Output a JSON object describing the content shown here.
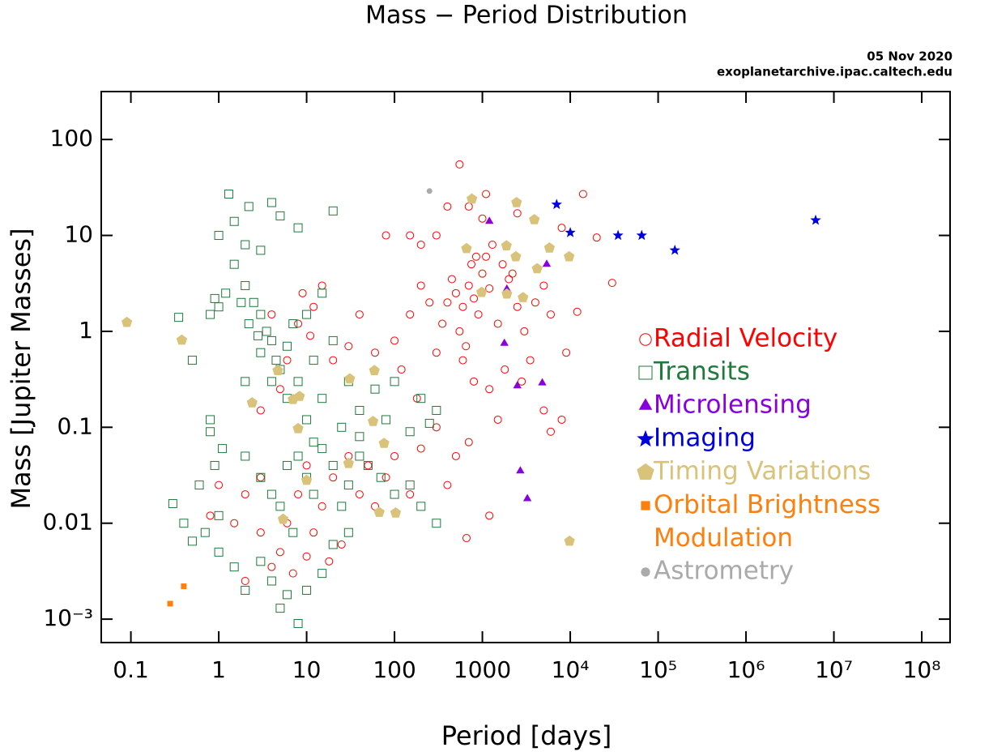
{
  "chart_data": {
    "type": "scatter",
    "title": "Mass − Period Distribution",
    "subtitle": "05 Nov 2020",
    "source": "exoplanetarchive.ipac.caltech.edu",
    "x_label": "Period [days]",
    "y_label": "Mass [Jupiter Masses]",
    "xscale": "log",
    "yscale": "log",
    "xlim": [
      0.046,
      210000000
    ],
    "ylim": [
      0.00057,
      316
    ],
    "xticks": [
      0.1,
      1,
      10,
      100,
      1000,
      {
        "value": 10000,
        "label": "10⁴"
      },
      {
        "value": 100000,
        "label": "10⁵"
      },
      {
        "value": 1000000,
        "label": "10⁶"
      },
      {
        "value": 10000000,
        "label": "10⁷"
      },
      {
        "value": 100000000,
        "label": "10⁸"
      }
    ],
    "yticks": [
      {
        "value": 0.001,
        "label": "10⁻³"
      },
      0.01,
      0.1,
      1,
      10,
      100
    ],
    "legend": "right",
    "series": [
      {
        "name": "Radial Velocity",
        "color": "#ff0000",
        "marker": "open-circle",
        "x": [
          550,
          700,
          1100,
          2500,
          1000,
          14000,
          20000,
          30000,
          12000,
          8000,
          400,
          200,
          150,
          80,
          300,
          400,
          500,
          600,
          700,
          800,
          900,
          1000,
          1200,
          1500,
          2000,
          2500,
          3000,
          350,
          450,
          550,
          650,
          750,
          850,
          1100,
          1300,
          1700,
          2200,
          4000,
          5000,
          6000,
          3500,
          2800,
          1800,
          1200,
          800,
          600,
          300,
          250,
          200,
          150,
          100,
          120,
          180,
          60,
          40,
          30,
          20,
          15,
          12,
          8,
          6,
          5,
          4,
          3,
          8000,
          5000,
          1500,
          700,
          500,
          300,
          400,
          1200,
          660,
          100,
          80,
          50,
          40,
          30,
          20,
          15,
          10,
          8,
          6,
          5,
          4,
          3,
          2,
          1.5,
          1,
          0.8,
          12,
          18,
          25,
          60,
          150,
          200,
          3,
          2,
          7,
          10,
          9,
          11,
          9000,
          6000
        ],
        "values": [
          55,
          20,
          27,
          17,
          15,
          27,
          9.5,
          3.2,
          1.6,
          12,
          20,
          8,
          10,
          10,
          10,
          2,
          2.5,
          1.8,
          3,
          2.2,
          1.5,
          4,
          2.8,
          1.2,
          3.5,
          1.8,
          1,
          1.2,
          3.5,
          1,
          0.7,
          5,
          6,
          6,
          8,
          5,
          4,
          2,
          3,
          1.5,
          0.5,
          0.3,
          0.4,
          0.25,
          0.3,
          0.5,
          0.6,
          2,
          3,
          1.5,
          0.8,
          0.4,
          0.2,
          0.6,
          1.5,
          0.7,
          0.5,
          3,
          1.8,
          1.2,
          0.5,
          0.25,
          1.5,
          0.15,
          0.12,
          0.15,
          0.12,
          0.07,
          0.05,
          0.1,
          0.025,
          0.012,
          0.007,
          0.05,
          0.03,
          0.04,
          0.02,
          0.05,
          0.03,
          0.015,
          0.04,
          0.02,
          0.01,
          0.005,
          0.0035,
          0.03,
          0.02,
          0.01,
          0.025,
          0.012,
          0.008,
          0.004,
          0.006,
          0.015,
          0.02,
          0.06,
          0.008,
          0.0025,
          0.003,
          0.0045,
          2.5,
          0.9,
          0.6,
          0.09
        ]
      },
      {
        "name": "Transits",
        "color": "#1f7a3c",
        "marker": "open-square",
        "x": [
          1.3,
          1.5,
          2.2,
          4,
          5,
          8,
          20,
          1,
          2,
          3,
          1.5,
          2,
          2.5,
          3,
          3.5,
          4,
          3,
          4.5,
          5,
          4,
          2.8,
          2.2,
          1.8,
          1.2,
          1,
          0.9,
          0.8,
          6,
          7,
          10,
          15,
          20,
          12,
          8,
          6,
          10,
          15,
          30,
          40,
          60,
          100,
          200,
          300,
          0.5,
          0.35,
          0.8,
          1.1,
          0.9,
          2,
          3,
          4,
          5,
          6,
          8,
          10,
          12,
          15,
          20,
          25,
          30,
          40,
          50,
          70,
          100,
          150,
          200,
          300,
          0.3,
          0.4,
          0.5,
          0.7,
          1,
          1.5,
          2,
          3,
          4,
          6,
          8,
          10,
          15,
          20,
          30,
          5,
          1,
          0.6,
          7,
          12,
          25,
          40,
          80,
          150,
          250,
          2,
          0.8
        ],
        "values": [
          27,
          14,
          20,
          22,
          16,
          12,
          18,
          10,
          8,
          7,
          5,
          3,
          2,
          1.5,
          1,
          0.8,
          0.6,
          0.5,
          0.4,
          0.3,
          0.9,
          1.2,
          2,
          2.5,
          1.8,
          2.2,
          1.5,
          0.7,
          1.2,
          1.5,
          2.5,
          0.8,
          0.5,
          0.3,
          0.2,
          0.12,
          0.2,
          0.3,
          0.15,
          0.25,
          0.3,
          0.2,
          0.15,
          0.5,
          1.4,
          0.12,
          0.06,
          0.04,
          0.05,
          0.03,
          0.02,
          0.015,
          0.04,
          0.05,
          0.03,
          0.02,
          0.06,
          0.04,
          0.015,
          0.025,
          0.05,
          0.04,
          0.03,
          0.02,
          0.025,
          0.015,
          0.01,
          0.016,
          0.01,
          0.0065,
          0.008,
          0.005,
          0.0035,
          0.002,
          0.004,
          0.0025,
          0.0018,
          0.0009,
          0.002,
          0.003,
          0.006,
          0.008,
          0.0013,
          0.012,
          0.025,
          0.008,
          0.07,
          0.1,
          0.08,
          0.12,
          0.09,
          0.11,
          0.3,
          0.09
        ]
      },
      {
        "name": "Microlensing",
        "color": "#8800dd",
        "marker": "triangle",
        "x": [
          1200,
          1900,
          5400,
          1780,
          2500,
          4800,
          2700,
          3250
        ],
        "values": [
          14,
          2.75,
          5,
          0.75,
          0.27,
          0.29,
          0.035,
          0.018
        ]
      },
      {
        "name": "Imaging",
        "color": "#0000dd",
        "marker": "star",
        "x": [
          7000,
          10000,
          35000,
          65000,
          155000,
          6200000
        ],
        "values": [
          21,
          10.7,
          10,
          10,
          7,
          14.4
        ]
      },
      {
        "name": "Timing Variations",
        "color": "#d9c27a",
        "marker": "pentagon",
        "x": [
          0.09,
          0.38,
          2.4,
          4.7,
          7,
          8.3,
          8,
          31,
          59,
          57,
          76,
          10,
          30,
          5.4,
          67,
          103,
          760,
          2450,
          660,
          1880,
          2400,
          4200,
          5800,
          9700,
          1900,
          2900,
          980,
          9800,
          3900
        ],
        "values": [
          1.24,
          0.81,
          0.18,
          0.39,
          0.195,
          0.21,
          0.097,
          0.32,
          0.39,
          0.115,
          0.068,
          0.028,
          0.042,
          0.011,
          0.013,
          0.0128,
          24,
          22,
          7.3,
          7.8,
          6,
          4.5,
          7.4,
          6,
          2.45,
          2.25,
          2.55,
          0.0065,
          14.6
        ]
      },
      {
        "name": "Orbital Brightness Modulation",
        "color": "#ff7f0e",
        "marker": "filled-square",
        "x": [
          0.28,
          0.4
        ],
        "values": [
          0.00145,
          0.0022
        ]
      },
      {
        "name": "Astrometry",
        "color": "#aaaaaa",
        "marker": "filled-circle",
        "x": [
          250
        ],
        "values": [
          29
        ]
      }
    ]
  }
}
